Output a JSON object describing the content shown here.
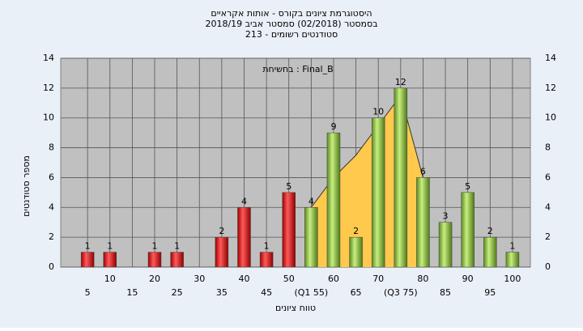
{
  "chart_data": {
    "type": "bar",
    "title": [
      "היסטוגרמת ציונים בקורס - אותות אקראיים",
      "בסמסטר  (02/2018)  סמסטר אביב 2018/19",
      "סטודנטים רשומים - 213"
    ],
    "annotation": "בחשיחת : Final_B",
    "xlabel": "טווח ציונים",
    "ylabel": "מספר סטודנטים",
    "x": [
      5,
      10,
      20,
      25,
      35,
      40,
      45,
      50,
      55,
      60,
      65,
      70,
      75,
      80,
      85,
      90,
      95,
      100
    ],
    "values": [
      1,
      1,
      1,
      1,
      2,
      4,
      1,
      5,
      4,
      9,
      2,
      10,
      12,
      6,
      3,
      5,
      2,
      1
    ],
    "colors": [
      "#e02020",
      "#e02020",
      "#e02020",
      "#e02020",
      "#e02020",
      "#e02020",
      "#e02020",
      "#e02020",
      "#8cc63f",
      "#8cc63f",
      "#8cc63f",
      "#8cc63f",
      "#8cc63f",
      "#8cc63f",
      "#8cc63f",
      "#8cc63f",
      "#8cc63f",
      "#8cc63f"
    ],
    "area": {
      "x": [
        55,
        60,
        65,
        70,
        75,
        80
      ],
      "values": [
        4,
        6,
        7.5,
        9.5,
        11.5,
        6
      ],
      "color": "#ffc94d"
    },
    "xlim": [
      -1,
      104
    ],
    "ylim": [
      0,
      14
    ],
    "xticks": [
      5,
      10,
      15,
      20,
      25,
      30,
      35,
      40,
      45,
      50,
      {
        "value": 55,
        "label": "(Q1 55)"
      },
      60,
      65,
      70,
      {
        "value": 75,
        "label": "(Q3 75)"
      },
      80,
      85,
      90,
      95,
      100
    ],
    "yticks": [
      0,
      2,
      4,
      6,
      8,
      10,
      12,
      14
    ],
    "y2ticks": [
      0,
      2,
      4,
      6,
      8,
      10,
      12,
      14
    ],
    "grid": true
  }
}
